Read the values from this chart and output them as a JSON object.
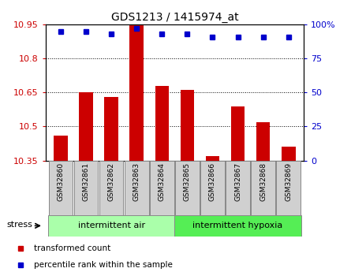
{
  "title": "GDS1213 / 1415974_at",
  "samples": [
    "GSM32860",
    "GSM32861",
    "GSM32862",
    "GSM32863",
    "GSM32864",
    "GSM32865",
    "GSM32866",
    "GSM32867",
    "GSM32868",
    "GSM32869"
  ],
  "transformed_counts": [
    10.46,
    10.65,
    10.63,
    10.95,
    10.68,
    10.66,
    10.37,
    10.59,
    10.52,
    10.41
  ],
  "percentile_ranks": [
    95,
    95,
    93,
    97,
    93,
    93,
    91,
    91,
    91,
    91
  ],
  "ymin": 10.35,
  "ymax": 10.95,
  "yticks": [
    10.35,
    10.5,
    10.65,
    10.8,
    10.95
  ],
  "ytick_labels": [
    "10.35",
    "10.5",
    "10.65",
    "10.8",
    "10.95"
  ],
  "right_yticks": [
    0,
    25,
    50,
    75,
    100
  ],
  "right_ytick_labels": [
    "0",
    "25",
    "50",
    "75",
    "100%"
  ],
  "bar_color": "#cc0000",
  "dot_color": "#0000cc",
  "bar_baseline": 10.35,
  "group1_label": "intermittent air",
  "group2_label": "intermittent hypoxia",
  "group1_indices": [
    0,
    1,
    2,
    3,
    4
  ],
  "group2_indices": [
    5,
    6,
    7,
    8,
    9
  ],
  "group1_color": "#aaffaa",
  "group2_color": "#55ee55",
  "stress_label": "stress",
  "legend_bar_label": "transformed count",
  "legend_dot_label": "percentile rank within the sample",
  "tick_label_color_left": "#cc0000",
  "tick_label_color_right": "#0000cc",
  "background_color": "#ffffff"
}
